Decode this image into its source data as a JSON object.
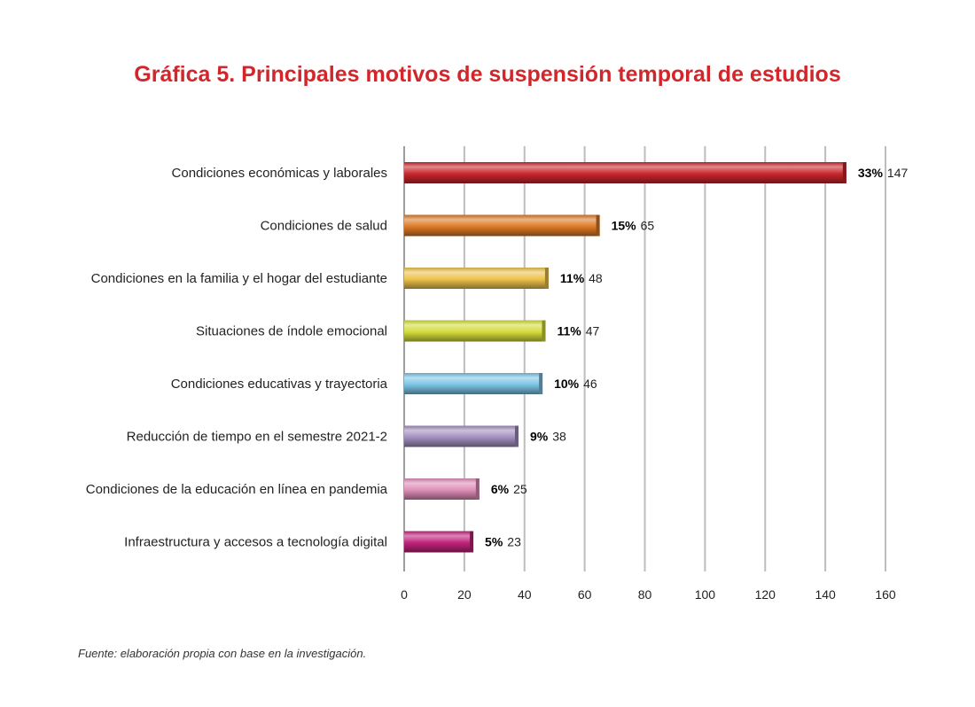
{
  "title": "Gráfica 5. Principales motivos de suspensión temporal de estudios",
  "source": "Fuente: elaboración propia con base en la investigación.",
  "chart_data": {
    "type": "bar",
    "orientation": "horizontal",
    "categories": [
      "Condiciones económicas y laborales",
      "Condiciones de salud",
      "Condiciones en la familia y el hogar del estudiante",
      "Situaciones de índole emocional",
      "Condiciones educativas y trayectoria",
      "Reducción de tiempo en el semestre 2021-2",
      "Condiciones de la educación en línea en pandemia",
      "Infraestructura y accesos a tecnología digital"
    ],
    "values": [
      147,
      65,
      48,
      47,
      46,
      38,
      25,
      23
    ],
    "percent_labels": [
      "33%",
      "15%",
      "11%",
      "11%",
      "10%",
      "9%",
      "6%",
      "5%"
    ],
    "colors": [
      "#c8262c",
      "#dd7a26",
      "#edc24c",
      "#d4dc3a",
      "#7cc4e6",
      "#a38fbe",
      "#df8eb8",
      "#c0237a"
    ],
    "xlim": [
      0,
      160
    ],
    "xticks": [
      0,
      20,
      40,
      60,
      80,
      100,
      120,
      140,
      160
    ],
    "grid": true
  }
}
